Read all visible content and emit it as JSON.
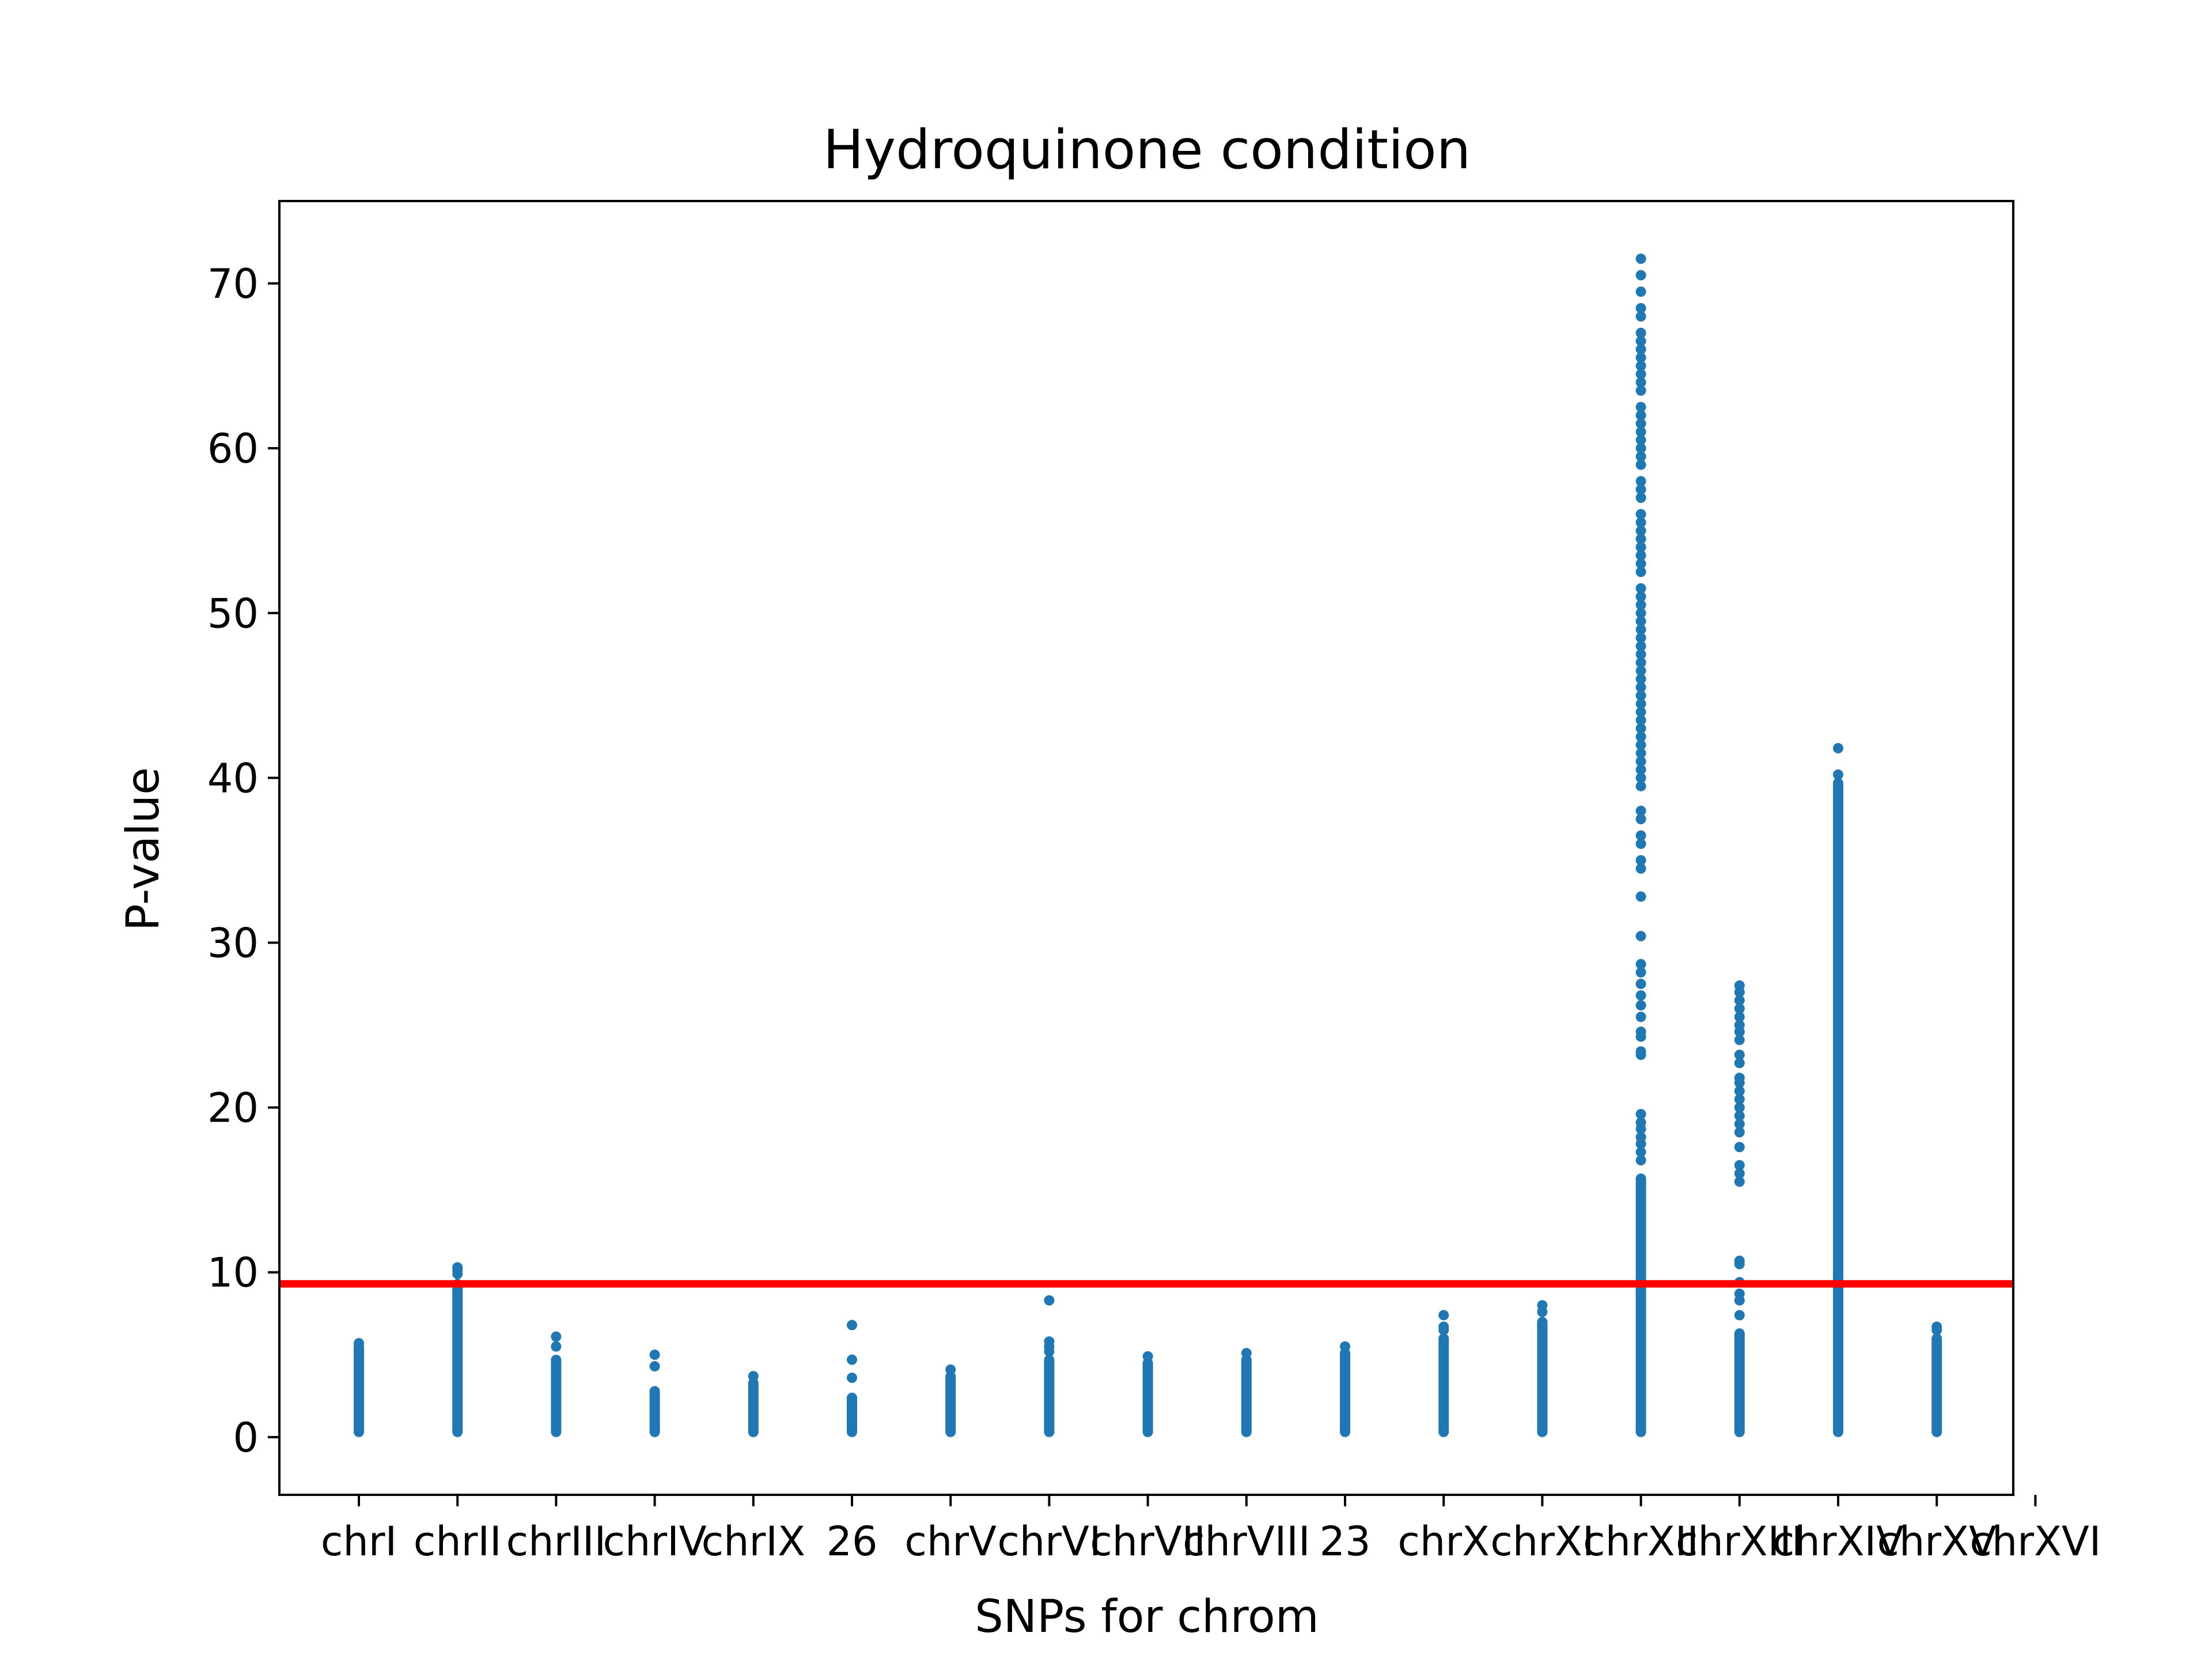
{
  "chart_data": {
    "type": "scatter",
    "title": "Hydroquinone condition",
    "xlabel": "SNPs for chrom",
    "ylabel": "P-value",
    "ylim": [
      -3.5,
      75
    ],
    "yticks": [
      0,
      10,
      20,
      30,
      40,
      50,
      60,
      70
    ],
    "categories": [
      "chrI",
      "chrII",
      "chrIII",
      "chrIV",
      "chrIX",
      "26",
      "chrV",
      "chrVI",
      "chrVII",
      "chrVIII",
      "23",
      "chrX",
      "chrXI",
      "chrXII",
      "chrXIII",
      "chrXIV",
      "chrXV",
      "chrXVI"
    ],
    "threshold": 9.3,
    "colors": {
      "points": "#1f77b4",
      "threshold": "#ff0000"
    },
    "series": [
      {
        "category": "chrI",
        "dense_max": 5.7,
        "points": [
          5.7,
          5.5,
          5.3
        ]
      },
      {
        "category": "chrII",
        "dense_max": 9.6,
        "points": [
          10.3,
          10.1,
          9.9
        ]
      },
      {
        "category": "chrIII",
        "dense_max": 5.0,
        "points": [
          6.1,
          5.5
        ]
      },
      {
        "category": "chrIV",
        "dense_max": 3.1,
        "points": [
          5.0,
          4.3
        ]
      },
      {
        "category": "chrIX",
        "dense_max": 3.6,
        "points": [
          3.7
        ]
      },
      {
        "category": "26",
        "dense_max": 2.7,
        "points": [
          6.8,
          4.7,
          3.6
        ]
      },
      {
        "category": "chrV",
        "dense_max": 4.0,
        "points": [
          4.1
        ]
      },
      {
        "category": "chrVI",
        "dense_max": 5.0,
        "points": [
          8.3,
          5.8,
          5.5,
          5.2
        ]
      },
      {
        "category": "chrVII",
        "dense_max": 4.8,
        "points": [
          4.9
        ]
      },
      {
        "category": "chrVIII",
        "dense_max": 5.0,
        "points": [
          5.1
        ]
      },
      {
        "category": "23",
        "dense_max": 5.4,
        "points": [
          5.5
        ]
      },
      {
        "category": "chrX",
        "dense_max": 6.3,
        "points": [
          7.4,
          6.7,
          6.5
        ]
      },
      {
        "category": "chrXI",
        "dense_max": 7.3,
        "points": [
          8.0,
          7.6
        ]
      },
      {
        "category": "chrXII",
        "dense_max": 16.0,
        "points": [
          71.5,
          70.5,
          69.5,
          68.5,
          68.0,
          67.0,
          66.5,
          66.0,
          65.5,
          65.0,
          64.5,
          64.0,
          63.5,
          62.5,
          62.0,
          61.5,
          61.0,
          60.5,
          60.0,
          59.5,
          59.0,
          58.0,
          57.5,
          57.0,
          56.0,
          55.5,
          55.0,
          54.5,
          54.0,
          53.5,
          53.0,
          52.5,
          51.5,
          51.0,
          50.5,
          50.0,
          49.5,
          49.0,
          48.5,
          48.0,
          47.5,
          47.0,
          46.5,
          46.0,
          45.5,
          45.0,
          44.5,
          44.0,
          43.5,
          43.0,
          42.5,
          42.0,
          41.5,
          41.0,
          40.5,
          40.0,
          39.5,
          38.0,
          37.5,
          36.5,
          36.0,
          35.0,
          34.5,
          32.8,
          30.4,
          28.7,
          28.2,
          27.5,
          26.8,
          26.2,
          25.5,
          24.6,
          24.3,
          23.4,
          23.2,
          19.6,
          19.1,
          18.7,
          18.2,
          17.8,
          17.3,
          16.8
        ]
      },
      {
        "category": "chrXIII",
        "dense_max": 6.6,
        "points": [
          27.4,
          27.0,
          26.5,
          26.0,
          25.5,
          25.0,
          24.6,
          24.1,
          23.2,
          22.7,
          21.8,
          21.5,
          21.0,
          20.5,
          20.0,
          19.5,
          19.0,
          18.5,
          17.6,
          16.5,
          16.0,
          15.5,
          10.7,
          10.5,
          9.4,
          8.7,
          8.3,
          7.4
        ]
      },
      {
        "category": "chrXIV",
        "dense_max": 40.0,
        "points": [
          41.8,
          40.2
        ]
      },
      {
        "category": "chrXV",
        "dense_max": 6.3,
        "points": [
          6.7,
          6.5
        ]
      }
    ]
  }
}
